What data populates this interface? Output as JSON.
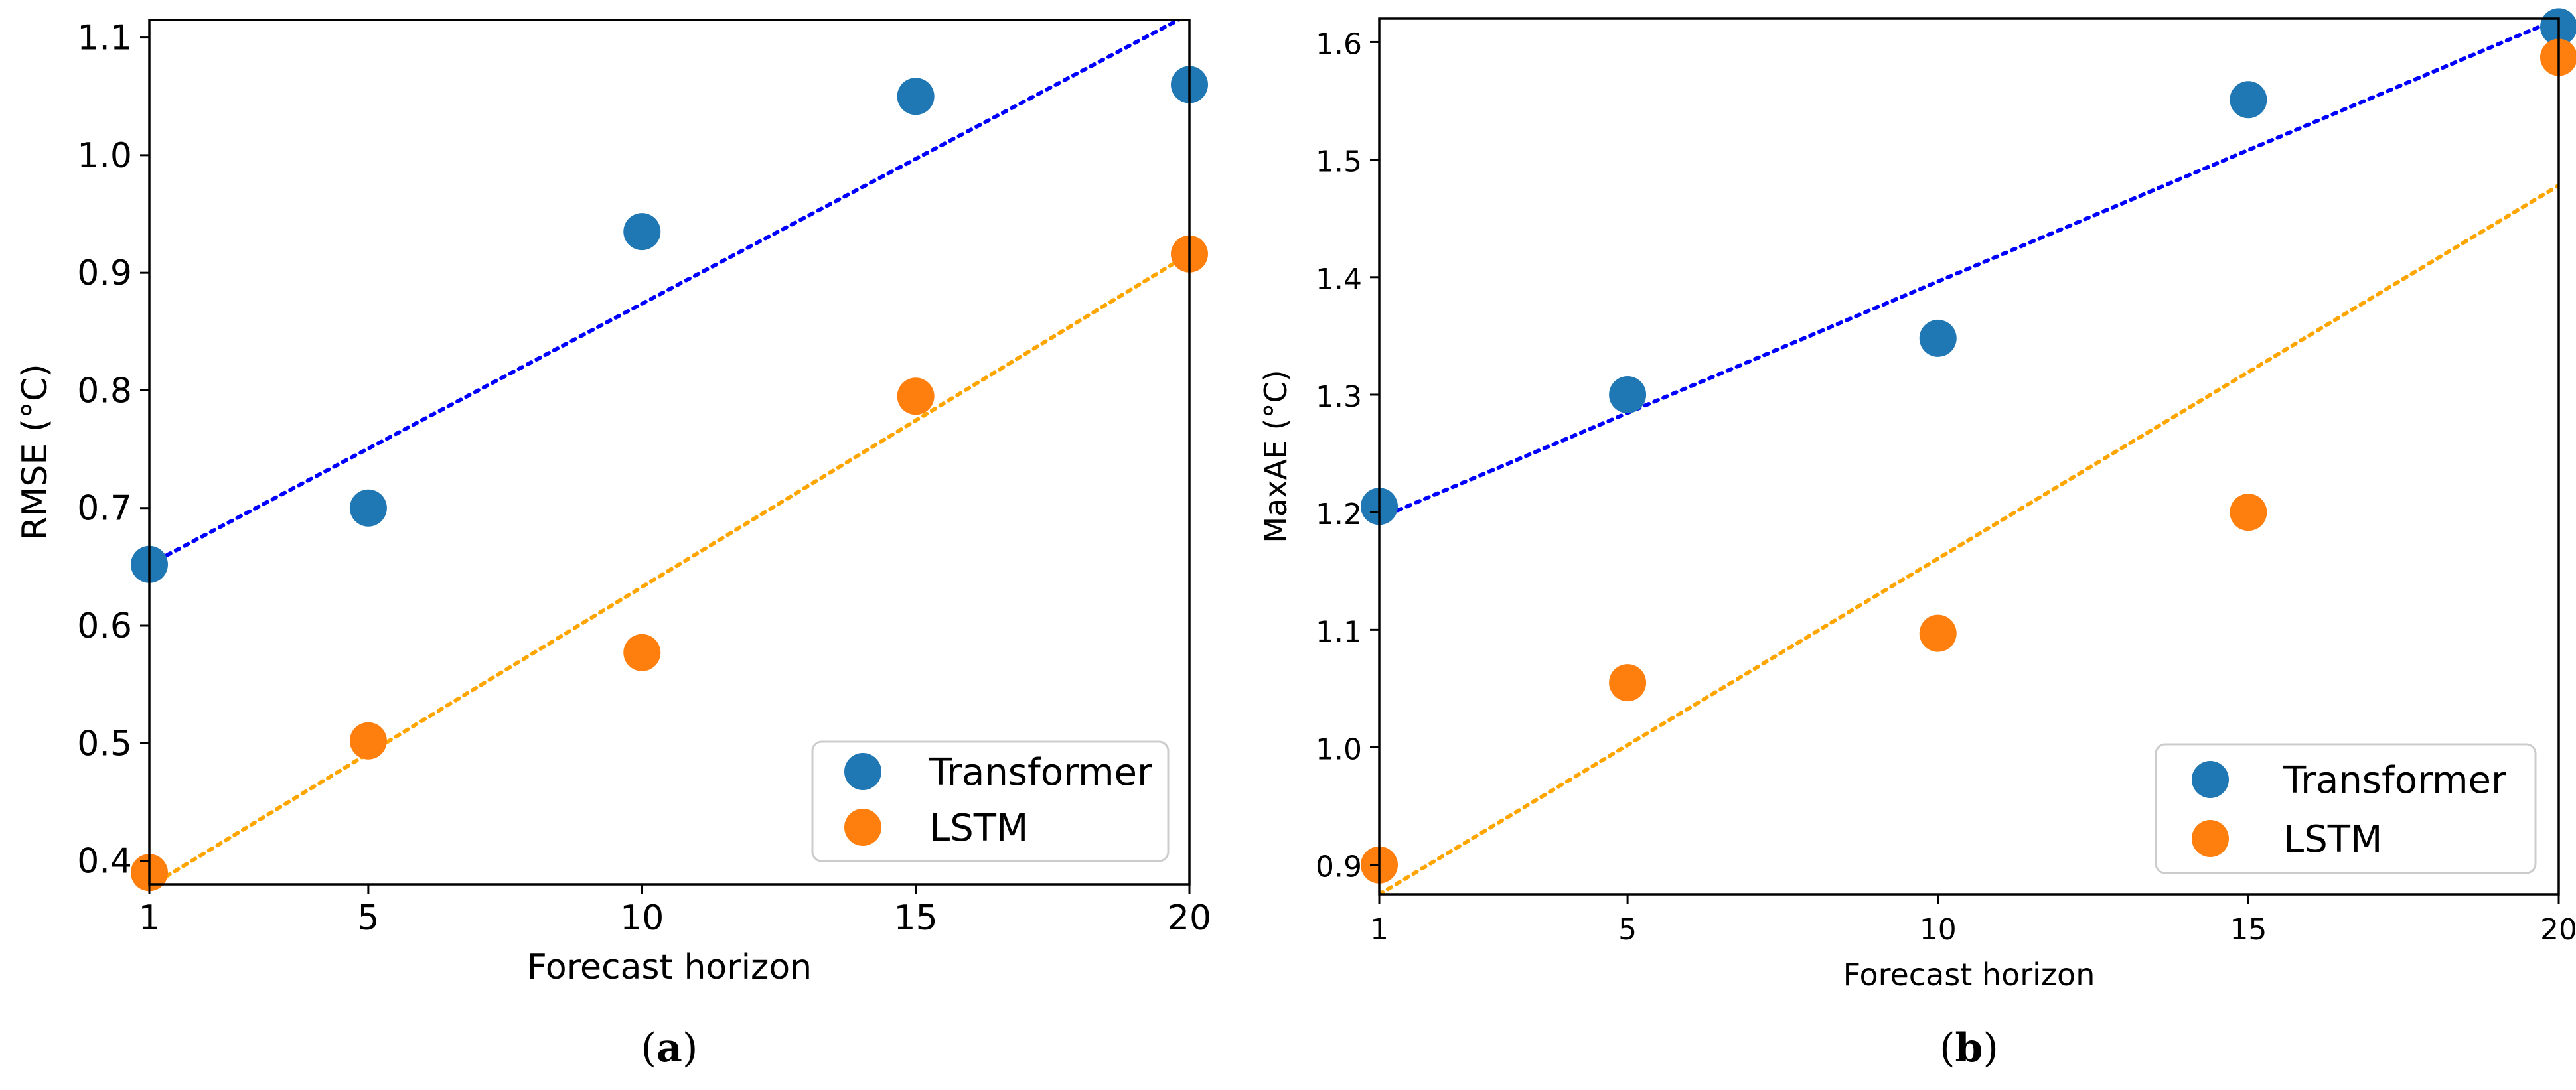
{
  "colors": {
    "transformer_point": "#1f77b4",
    "lstm_point": "#ff7f0e",
    "transformer_trend": "#0000ff",
    "lstm_trend": "#ffa500"
  },
  "chart_data": [
    {
      "type": "scatter",
      "panel_label_paren_open": "(",
      "panel_label_letter": "a",
      "panel_label_paren_close": ")",
      "xlabel": "Forecast horizon",
      "ylabel": "RMSE (°C)",
      "xlim": [
        1,
        20
      ],
      "ylim": [
        0.38,
        1.115
      ],
      "xticks": [
        1,
        5,
        10,
        15,
        20
      ],
      "yticks": [
        0.4,
        0.5,
        0.6,
        0.7,
        0.8,
        0.9,
        1.0,
        1.1
      ],
      "ytick_labels": [
        "0.4",
        "0.5",
        "0.6",
        "0.7",
        "0.8",
        "0.9",
        "1.0",
        "1.1"
      ],
      "legend_position": "lower-right",
      "series": [
        {
          "name": "Transformer",
          "x": [
            1,
            5,
            10,
            15,
            20
          ],
          "y": [
            0.652,
            0.7,
            0.935,
            1.05,
            1.06
          ]
        },
        {
          "name": "LSTM",
          "x": [
            1,
            5,
            10,
            15,
            20
          ],
          "y": [
            0.39,
            0.502,
            0.577,
            0.795,
            0.916
          ]
        }
      ],
      "trendlines": [
        {
          "series": "Transformer",
          "y_at_xmin": 0.652,
          "y_at_xmax": 1.12
        },
        {
          "series": "LSTM",
          "y_at_xmin": 0.378,
          "y_at_xmax": 0.916
        }
      ]
    },
    {
      "type": "scatter",
      "panel_label_paren_open": "(",
      "panel_label_letter": "b",
      "panel_label_paren_close": ")",
      "xlabel": "Forecast horizon",
      "ylabel": "MaxAE (°C)",
      "xlim": [
        1,
        20
      ],
      "ylim": [
        0.875,
        1.62
      ],
      "xticks": [
        1,
        5,
        10,
        15,
        20
      ],
      "yticks": [
        0.9,
        1.0,
        1.1,
        1.2,
        1.3,
        1.4,
        1.5,
        1.6
      ],
      "ytick_labels": [
        "0.9",
        "1.0",
        "1.1",
        "1.2",
        "1.3",
        "1.4",
        "1.5",
        "1.6"
      ],
      "legend_position": "lower-right",
      "series": [
        {
          "name": "Transformer",
          "x": [
            1,
            5,
            10,
            15,
            20
          ],
          "y": [
            1.205,
            1.3,
            1.348,
            1.551,
            1.613
          ]
        },
        {
          "name": "LSTM",
          "x": [
            1,
            5,
            10,
            15,
            20
          ],
          "y": [
            0.9,
            1.055,
            1.097,
            1.2,
            1.587
          ]
        }
      ],
      "trendlines": [
        {
          "series": "Transformer",
          "y_at_xmin": 1.195,
          "y_at_xmax": 1.62
        },
        {
          "series": "LSTM",
          "y_at_xmin": 0.875,
          "y_at_xmax": 1.478
        }
      ]
    }
  ]
}
